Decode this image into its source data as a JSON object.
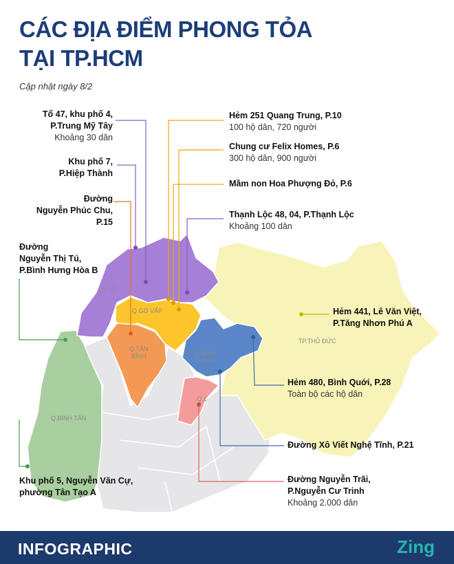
{
  "header": {
    "title_line1": "CÁC ĐỊA ĐIỂM PHONG TỎA",
    "title_line2": "TẠI TP.HCM",
    "updated": "Cập nhật ngày 8/2"
  },
  "districts": {
    "q12": "Q.12",
    "go_vap": "Q.GÒ VẤP",
    "tan_binh_1": "Q.TÂN",
    "tan_binh_2": "BÌNH",
    "binh_thanh_1": "Q.BÌNH",
    "binh_thanh_2": "THẠNH",
    "q1": "Q.1",
    "binh_tan": "Q.BÌNH TÂN",
    "thu_duc": "TP.THỦ ĐỨC"
  },
  "locations": {
    "to47": {
      "l1": "Tổ 47, khu phố 4,",
      "l2": "P.Trung Mỹ Tây",
      "sub": "Khoảng 30 dân"
    },
    "kp7": {
      "l1": "Khu phố 7,",
      "l2": "P.Hiệp Thành"
    },
    "npc": {
      "l1": "Đường",
      "l2": "Nguyễn Phúc Chu,",
      "l3": "P.15"
    },
    "ntt": {
      "l1": "Đường",
      "l2": "Nguyễn Thị Tú,",
      "l3": "P.Bình Hưng Hòa B"
    },
    "kp5": {
      "l1": "Khu phố 5, Nguyễn Văn Cự,",
      "l2": "phường Tân Tạo A"
    },
    "h251": {
      "title": "Hẻm 251 Quang Trung, P.10",
      "sub": "100 hộ dân, 720 người"
    },
    "felix": {
      "title": "Chung cư Felix Homes, P.6",
      "sub": "300 hộ dân, 900 người"
    },
    "mamnon": {
      "title": "Mầm non Hoa Phượng Đỏ, P.6"
    },
    "thanhloc": {
      "title": "Thạnh Lộc 48, 04, P.Thạnh Lộc",
      "sub": "Khoảng 100 dân"
    },
    "h441": {
      "l1": "Hẻm 441, Lê Văn Việt,",
      "l2": "P.Tăng Nhơn Phú A"
    },
    "h480": {
      "title": "Hẻm 480, Bình Quới, P.28",
      "sub": "Toàn bộ các hộ dân"
    },
    "xvnt": {
      "title": "Đường Xô Viết Nghệ Tĩnh, P.21"
    },
    "ntrai": {
      "l1": "Đường Nguyễn Trãi,",
      "l2": "P.Nguyễn Cư Trinh",
      "sub": "Khoảng 2.000 dân"
    }
  },
  "footer": {
    "brand": "INFOGRAPHIC",
    "logo": "Zing"
  },
  "colors": {
    "title": "#1d3d7a",
    "q12": "#a67fd6",
    "go_vap": "#fcc52b",
    "tan_binh": "#f49953",
    "binh_thanh": "#5a86c8",
    "q1": "#f49c9c",
    "binh_tan": "#a9cfa0",
    "thu_duc": "#f8f3b8",
    "other": "#e6e6e8",
    "footer": "#1c3a6b"
  }
}
